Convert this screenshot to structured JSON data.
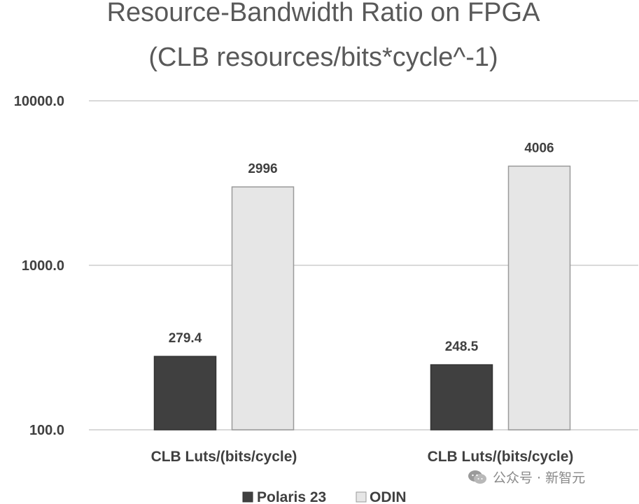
{
  "chart_data": {
    "type": "bar",
    "title": "Resource-Bandwidth Ratio on FPGA",
    "subtitle": "(CLB resources/bits*cycle^-1)",
    "categories": [
      "CLB Luts/(bits/cycle)",
      "CLB Luts/(bits/cycle)"
    ],
    "series": [
      {
        "name": "Polaris 23",
        "values": [
          279.4,
          248.5
        ],
        "labels": [
          "279.4",
          "248.5"
        ],
        "color": "#404040"
      },
      {
        "name": "ODIN",
        "values": [
          2996,
          4006
        ],
        "labels": [
          "2996",
          "4006"
        ],
        "color": "#e6e6e6"
      }
    ],
    "y_scale": "log",
    "ylim": [
      100,
      10000
    ],
    "y_ticks": [
      100,
      1000,
      10000
    ],
    "y_tick_labels": [
      "100.0",
      "1000.0",
      "10000.0"
    ],
    "grid": true,
    "legend_position": "bottom",
    "xlabel": "",
    "ylabel": ""
  },
  "watermark": {
    "logo_icon": "wechat-icon",
    "text": "公众号 · 新智元"
  }
}
